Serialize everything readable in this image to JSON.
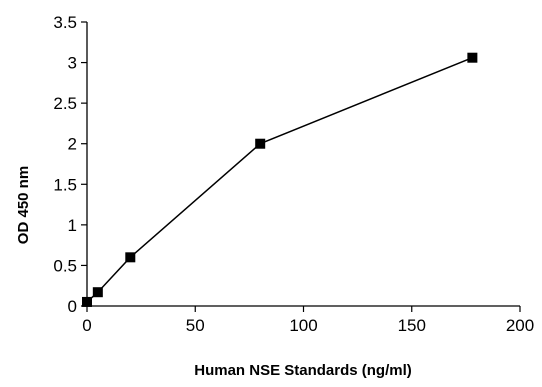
{
  "chart_data": {
    "type": "line",
    "title": "",
    "xlabel": "Human NSE Standards (ng/ml)",
    "ylabel": "OD 450 nm",
    "xlim": [
      0,
      200
    ],
    "ylim": [
      0,
      3.5
    ],
    "x_ticks": [
      "0",
      "50",
      "100",
      "150",
      "200"
    ],
    "y_ticks": [
      "0",
      "0.5",
      "1",
      "1.5",
      "2",
      "2.5",
      "3",
      "3.5"
    ],
    "grid": false,
    "legend": "none",
    "series": [
      {
        "marker": "square",
        "color": "#000000",
        "x": [
          0,
          5,
          20,
          80,
          178
        ],
        "y": [
          0.05,
          0.17,
          0.6,
          2.0,
          3.06
        ]
      }
    ]
  }
}
